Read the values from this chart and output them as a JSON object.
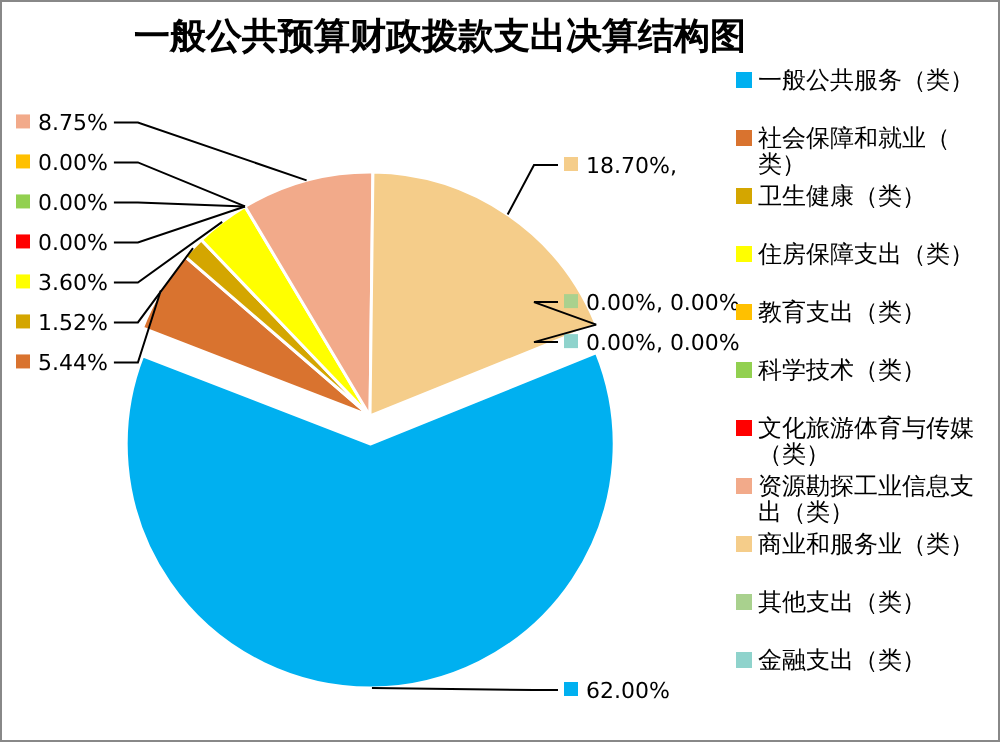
{
  "chart_data": {
    "type": "pie",
    "title": "一般公共预算财政拨款支出决算结构图",
    "categories": [
      "一般公共服务（类）",
      "社会保障和就业（类）",
      "卫生健康（类）",
      "住房保障支出（类）",
      "教育支出（类）",
      "科学技术（类）",
      "文化旅游体育与传媒（类）",
      "资源勘探工业信息支出（类）",
      "商业和服务业（类）",
      "其他支出（类）",
      "金融支出（类）"
    ],
    "values": [
      62.0,
      5.44,
      1.52,
      3.6,
      0.0,
      0.0,
      0.0,
      8.75,
      18.7,
      0.0,
      0.0
    ],
    "colors": [
      "#00b0f0",
      "#d9732f",
      "#d4a600",
      "#ffff00",
      "#ffc000",
      "#92d050",
      "#ff0000",
      "#f2aa8a",
      "#f5cd8a",
      "#a9d18e",
      "#8fd3cc"
    ],
    "value_labels": [
      "62.00%",
      "5.44%",
      "1.52%",
      "3.60%",
      "0.00%",
      "0.00%",
      "0.00%",
      "8.75%",
      "18.70%,",
      "0.00%, 0.00%",
      "0.00%, 0.00%"
    ],
    "legend": "right"
  }
}
